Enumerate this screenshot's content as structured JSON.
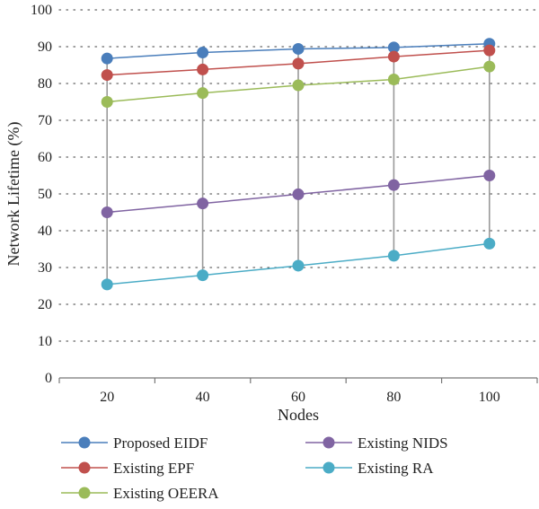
{
  "chart_data": {
    "type": "line",
    "title": "",
    "xlabel": "Nodes",
    "ylabel": "Network Lifetime (%)",
    "categories": [
      "20",
      "40",
      "60",
      "80",
      "100"
    ],
    "ylim": [
      0,
      100
    ],
    "yticks": [
      "0",
      "10",
      "20",
      "30",
      "40",
      "50",
      "60",
      "70",
      "80",
      "90",
      "100"
    ],
    "grid": "dotted horizontal gridlines",
    "legend_position": "bottom",
    "series": [
      {
        "name": "Proposed EIDF",
        "color": "#4a7ebb",
        "values": [
          86.8,
          88.4,
          89.4,
          89.8,
          90.8
        ]
      },
      {
        "name": "Existing EPF",
        "color": "#c0504d",
        "values": [
          82.3,
          83.8,
          85.4,
          87.3,
          89.0
        ]
      },
      {
        "name": "Existing OEERA",
        "color": "#9bbb59",
        "values": [
          75.0,
          77.4,
          79.5,
          81.1,
          84.6
        ]
      },
      {
        "name": "Existing NIDS",
        "color": "#8064a2",
        "values": [
          45.0,
          47.4,
          49.9,
          52.4,
          55.0
        ]
      },
      {
        "name": "Existing RA",
        "color": "#4bacc6",
        "values": [
          25.4,
          27.9,
          30.5,
          33.2,
          36.5
        ]
      }
    ]
  }
}
